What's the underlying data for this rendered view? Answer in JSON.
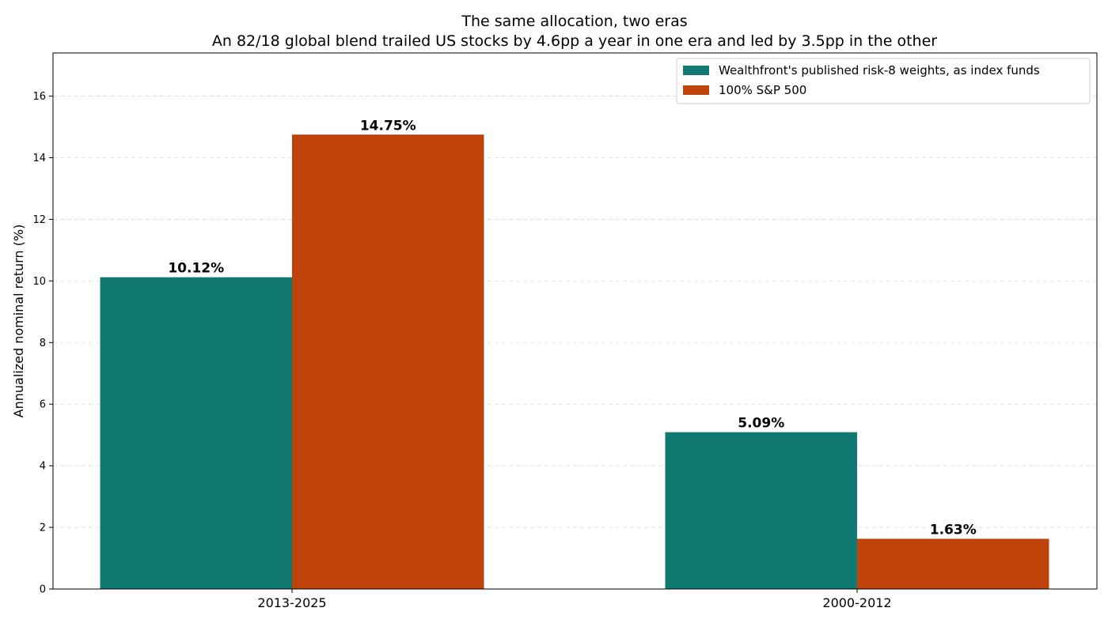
{
  "chart_data": {
    "type": "bar",
    "title": "The same allocation, two eras",
    "subtitle": "An 82/18 global blend trailed US stocks by 4.6pp a year in one era and led by 3.5pp in the other",
    "xlabel": "",
    "ylabel": "Annualized nominal return (%)",
    "categories": [
      "2013-2025",
      "2000-2012"
    ],
    "series": [
      {
        "name": "Wealthfront's published risk-8 weights, as index funds",
        "values": [
          10.12,
          5.09
        ],
        "labels": [
          "10.12%",
          "5.09%"
        ],
        "color": "#107a72"
      },
      {
        "name": "100% S&P 500",
        "values": [
          14.75,
          1.63
        ],
        "labels": [
          "14.75%",
          "1.63%"
        ],
        "color": "#c0430c"
      }
    ],
    "ylim": [
      0,
      17.4
    ],
    "yticks": [
      0,
      2,
      4,
      6,
      8,
      10,
      12,
      14,
      16
    ],
    "ytick_labels": [
      "0",
      "2",
      "4",
      "6",
      "8",
      "10",
      "12",
      "14",
      "16"
    ],
    "grid": "y-dashed",
    "legend": "top-right"
  }
}
